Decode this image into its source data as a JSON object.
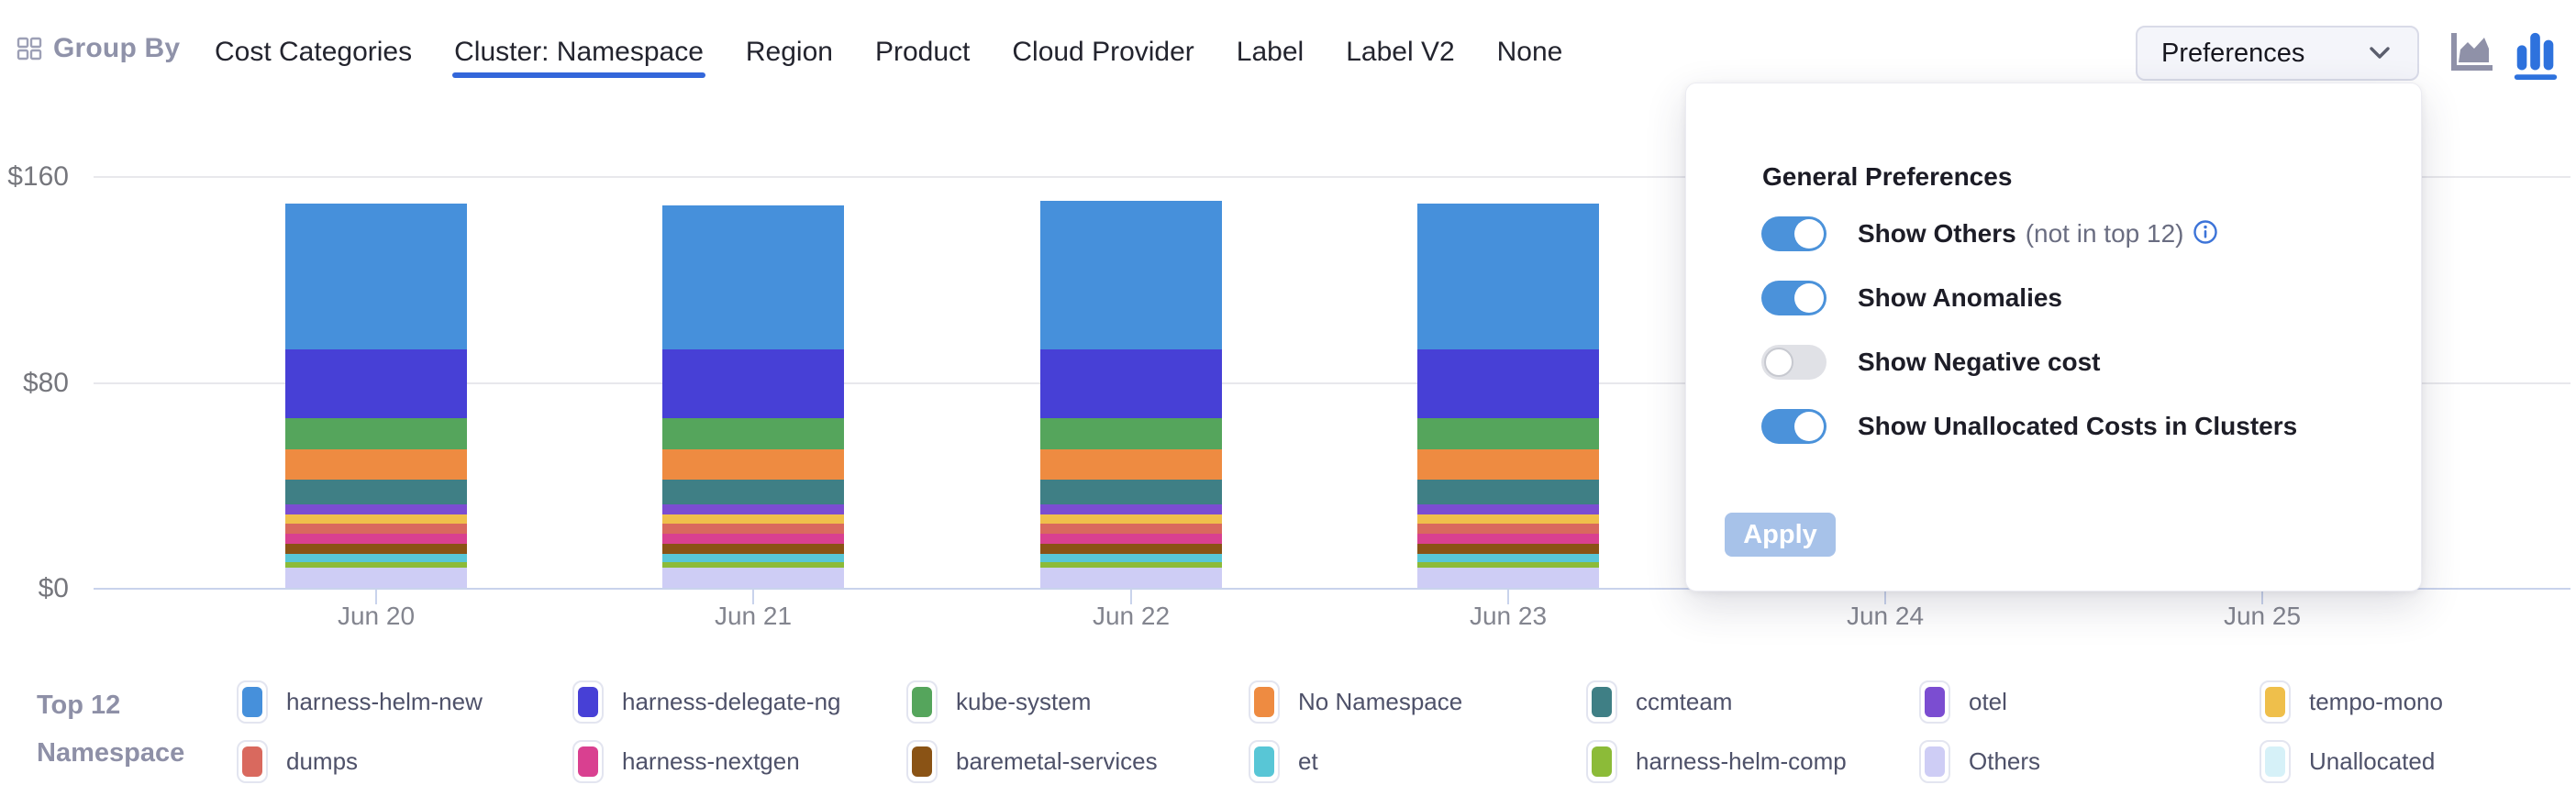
{
  "header": {
    "group_by_label": "Group By",
    "tabs": [
      {
        "label": "Cost Categories",
        "active": false
      },
      {
        "label": "Cluster: Namespace",
        "active": true
      },
      {
        "label": "Region",
        "active": false
      },
      {
        "label": "Product",
        "active": false
      },
      {
        "label": "Cloud Provider",
        "active": false
      },
      {
        "label": "Label",
        "active": false
      },
      {
        "label": "Label V2",
        "active": false
      },
      {
        "label": "None",
        "active": false
      }
    ],
    "preferences_label": "Preferences",
    "chart_type_toggle": {
      "area_selected": false,
      "bar_selected": true
    },
    "accent_color": "#3367da"
  },
  "preferences_panel": {
    "title": "General Preferences",
    "toggles": [
      {
        "label": "Show Others",
        "suffix": "(not in top 12)",
        "info": true,
        "on": true
      },
      {
        "label": "Show Anomalies",
        "suffix": "",
        "info": false,
        "on": true
      },
      {
        "label": "Show Negative cost",
        "suffix": "",
        "info": false,
        "on": false
      },
      {
        "label": "Show Unallocated Costs in Clusters",
        "suffix": "",
        "info": false,
        "on": true
      }
    ],
    "apply_label": "Apply",
    "apply_enabled": false,
    "toggle_on_color": "#4b92da"
  },
  "legend": {
    "title_line1": "Top 12",
    "title_line2": "Namespace"
  },
  "chart_data": {
    "type": "bar",
    "stacked": true,
    "title": "",
    "xlabel": "",
    "ylabel": "",
    "currency": "USD",
    "ylim": [
      0,
      160
    ],
    "ytick_values": [
      160,
      80,
      0
    ],
    "ytick_labels": [
      "$160",
      "$80",
      "$0"
    ],
    "grid": "horizontal",
    "legend_position": "bottom",
    "categories": [
      "Jun 20",
      "Jun 21",
      "Jun 22",
      "Jun 23",
      "Jun 24",
      "Jun 25"
    ],
    "series": [
      {
        "name": "harness-helm-new",
        "color": "#4690db",
        "values": [
          56.7,
          56.0,
          57.8,
          56.7,
          null,
          null
        ]
      },
      {
        "name": "harness-delegate-ng",
        "color": "#4740d6",
        "values": [
          26.7,
          26.7,
          26.7,
          26.7,
          null,
          null
        ]
      },
      {
        "name": "kube-system",
        "color": "#55a55c",
        "values": [
          12.1,
          12.1,
          12.1,
          12.1,
          null,
          null
        ]
      },
      {
        "name": "No Namespace",
        "color": "#ee8b41",
        "values": [
          11.8,
          11.8,
          11.8,
          11.8,
          null,
          null
        ]
      },
      {
        "name": "ccmteam",
        "color": "#3f7f85",
        "values": [
          9.6,
          9.6,
          9.6,
          9.6,
          null,
          null
        ]
      },
      {
        "name": "otel",
        "color": "#7b4dd1",
        "values": [
          3.9,
          3.9,
          3.9,
          3.9,
          null,
          null
        ]
      },
      {
        "name": "tempo-mono",
        "color": "#efbf4b",
        "values": [
          3.6,
          3.6,
          3.6,
          3.6,
          null,
          null
        ]
      },
      {
        "name": "dumps",
        "color": "#d9695e",
        "values": [
          3.9,
          3.9,
          3.9,
          3.9,
          null,
          null
        ]
      },
      {
        "name": "harness-nextgen",
        "color": "#d94090",
        "values": [
          3.9,
          3.9,
          3.9,
          3.9,
          null,
          null
        ]
      },
      {
        "name": "baremetal-services",
        "color": "#8a5315",
        "values": [
          3.9,
          3.9,
          3.9,
          3.9,
          null,
          null
        ]
      },
      {
        "name": "et",
        "color": "#58c6d6",
        "values": [
          3.2,
          3.2,
          3.2,
          3.2,
          null,
          null
        ]
      },
      {
        "name": "harness-helm-comp",
        "color": "#8cbb38",
        "values": [
          2.1,
          2.1,
          2.1,
          2.1,
          null,
          null
        ]
      },
      {
        "name": "Others",
        "color": "#cecdf5",
        "values": [
          7.8,
          7.8,
          7.8,
          7.8,
          null,
          null
        ]
      },
      {
        "name": "Unallocated",
        "color": "#d6f1f8",
        "values": [
          0,
          0,
          0,
          0,
          null,
          null
        ]
      }
    ]
  }
}
